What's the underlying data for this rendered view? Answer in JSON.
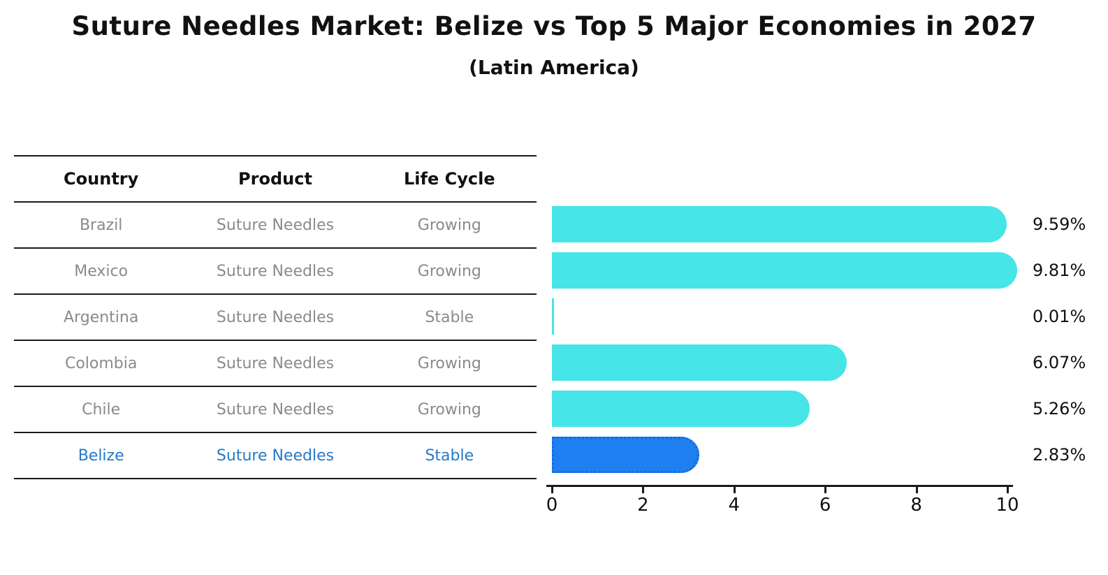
{
  "title": "Suture Needles Market: Belize vs Top 5 Major Economies in 2027",
  "subtitle": "(Latin America)",
  "table": {
    "headers": [
      "Country",
      "Product",
      "Life Cycle"
    ],
    "rows": [
      {
        "country": "Brazil",
        "product": "Suture Needles",
        "life_cycle": "Growing",
        "highlight": false
      },
      {
        "country": "Mexico",
        "product": "Suture Needles",
        "life_cycle": "Growing",
        "highlight": false
      },
      {
        "country": "Argentina",
        "product": "Suture Needles",
        "life_cycle": "Stable",
        "highlight": false
      },
      {
        "country": "Colombia",
        "product": "Suture Needles",
        "life_cycle": "Growing",
        "highlight": false
      },
      {
        "country": "Chile",
        "product": "Suture Needles",
        "life_cycle": "Growing",
        "highlight": false
      },
      {
        "country": "Belize",
        "product": "Suture Needles",
        "life_cycle": "Stable",
        "highlight": true
      }
    ]
  },
  "chart_data": {
    "type": "bar",
    "orientation": "horizontal",
    "title": "Suture Needles Market: Belize vs Top 5 Major Economies in 2027",
    "subtitle": "(Latin America)",
    "categories": [
      "Brazil",
      "Mexico",
      "Argentina",
      "Colombia",
      "Chile",
      "Belize"
    ],
    "values": [
      9.59,
      9.81,
      0.01,
      6.07,
      5.26,
      2.83
    ],
    "value_labels": [
      "9.59%",
      "9.81%",
      "0.01%",
      "6.07%",
      "5.26%",
      "2.83%"
    ],
    "xlim": [
      0,
      10
    ],
    "x_ticks": [
      "0",
      "2",
      "4",
      "6",
      "8",
      "10"
    ],
    "grid": false,
    "legend": "none",
    "highlight_index": 5,
    "bar_color": "#45e5e8",
    "highlight_bar_color": "#1e80f0",
    "highlight_border_color": "#1b66dd",
    "highlight_text_color": "#2879c7",
    "row_text_color": "#8a8a8a"
  }
}
